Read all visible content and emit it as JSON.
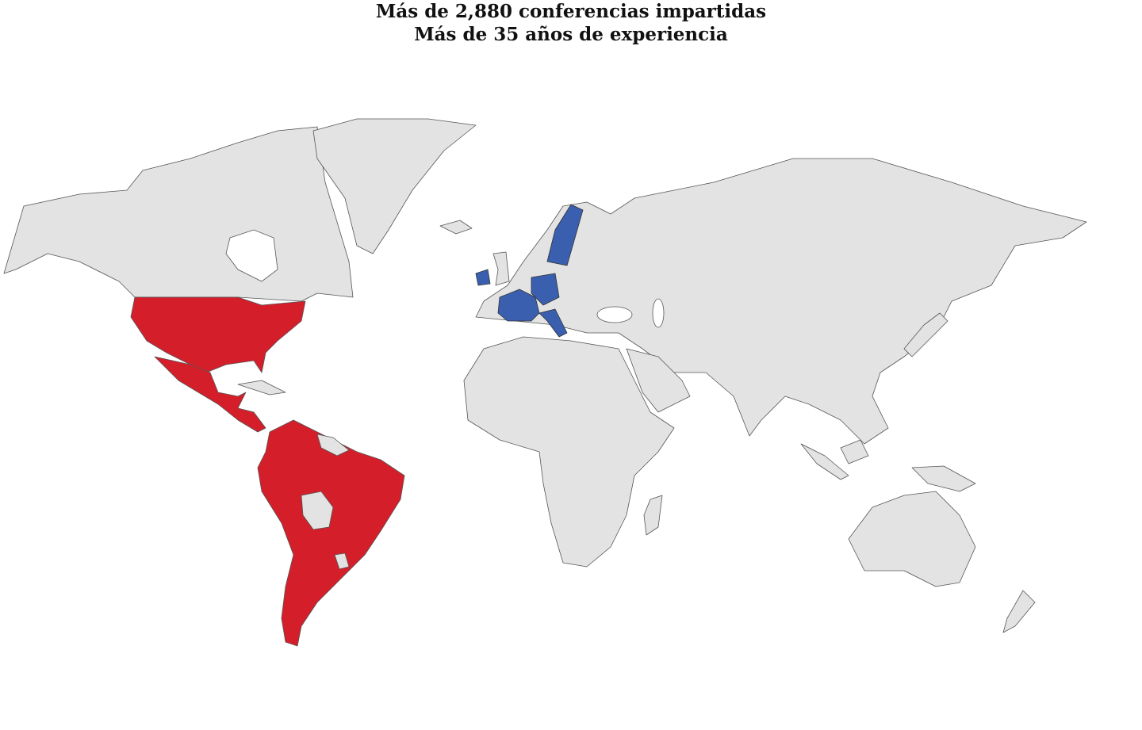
{
  "title": {
    "line1": "Más de 2,880 conferencias impartidas",
    "line2": "Más de 35 años de experiencia"
  }
}
